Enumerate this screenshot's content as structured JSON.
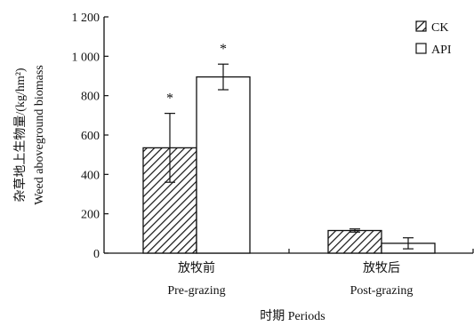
{
  "chart_data": {
    "type": "bar",
    "ylabel_cn": "杂草地上生物量/(kg/hm²)",
    "ylabel_en": "Weed aboveground biomass",
    "xlabel": "时期 Periods",
    "ylim": [
      0,
      1200
    ],
    "yticks": [
      0,
      200,
      400,
      600,
      800,
      1000,
      1200
    ],
    "ytick_labels": [
      "0",
      "200",
      "400",
      "600",
      "800",
      "1 000",
      "1 200"
    ],
    "categories": [
      {
        "cn": "放牧前",
        "en": "Pre-grazing"
      },
      {
        "cn": "放牧后",
        "en": "Post-grazing"
      }
    ],
    "series": [
      {
        "name": "CK",
        "pattern": "hatched",
        "values": [
          535,
          115
        ],
        "errors": [
          175,
          8
        ],
        "marks": [
          "*",
          ""
        ]
      },
      {
        "name": "API",
        "pattern": "open",
        "values": [
          895,
          50
        ],
        "errors": [
          65,
          28
        ],
        "marks": [
          "*",
          ""
        ]
      }
    ],
    "legend_position": "top-right",
    "grid": false
  }
}
